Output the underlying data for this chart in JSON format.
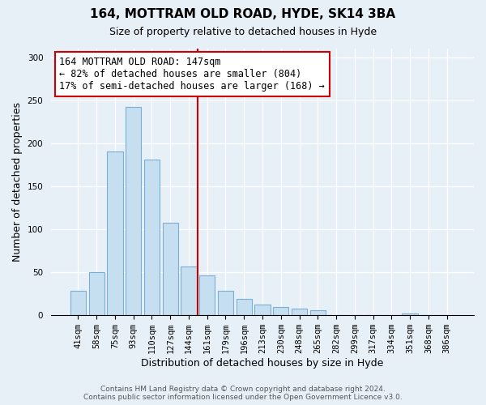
{
  "title": "164, MOTTRAM OLD ROAD, HYDE, SK14 3BA",
  "subtitle": "Size of property relative to detached houses in Hyde",
  "xlabel": "Distribution of detached houses by size in Hyde",
  "ylabel": "Number of detached properties",
  "bar_labels": [
    "41sqm",
    "58sqm",
    "75sqm",
    "93sqm",
    "110sqm",
    "127sqm",
    "144sqm",
    "161sqm",
    "179sqm",
    "196sqm",
    "213sqm",
    "230sqm",
    "248sqm",
    "265sqm",
    "282sqm",
    "299sqm",
    "317sqm",
    "334sqm",
    "351sqm",
    "368sqm",
    "386sqm"
  ],
  "bar_values": [
    28,
    50,
    190,
    242,
    181,
    108,
    57,
    46,
    28,
    19,
    12,
    10,
    8,
    6,
    0,
    0,
    0,
    0,
    2,
    0,
    0
  ],
  "bar_color": "#c5dff0",
  "bar_edge_color": "#7aaed6",
  "vline_x": 6.5,
  "vline_color": "#cc0000",
  "annotation_text": "164 MOTTRAM OLD ROAD: 147sqm\n← 82% of detached houses are smaller (804)\n17% of semi-detached houses are larger (168) →",
  "annotation_box_color": "#ffffff",
  "annotation_box_edge": "#cc0000",
  "ylim": [
    0,
    310
  ],
  "yticks": [
    0,
    50,
    100,
    150,
    200,
    250,
    300
  ],
  "footer_line1": "Contains HM Land Registry data © Crown copyright and database right 2024.",
  "footer_line2": "Contains public sector information licensed under the Open Government Licence v3.0.",
  "bg_color": "#e8f0f7",
  "grid_color": "#ffffff",
  "title_fontsize": 11,
  "subtitle_fontsize": 9,
  "ylabel_fontsize": 9,
  "xlabel_fontsize": 9,
  "tick_fontsize": 7.5,
  "annotation_fontsize": 8.5,
  "footer_fontsize": 6.5
}
